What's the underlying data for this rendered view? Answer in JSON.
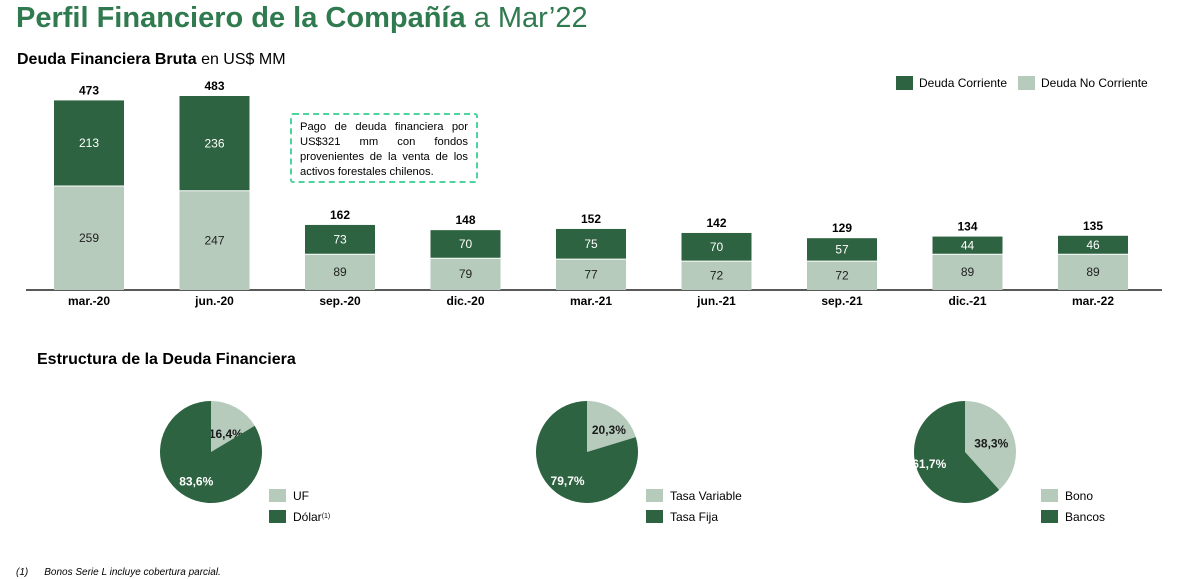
{
  "header": {
    "title_bold": "Perfil Financiero de la Compañía",
    "title_light": "a Mar’22"
  },
  "debt_chart": {
    "subtitle_bold": "Deuda Financiera Bruta",
    "subtitle_light": "en US$ MM",
    "callout": "Pago de deuda financiera por US$321 mm con fondos provenientes de la venta de los activos forestales chilenos."
  },
  "colors": {
    "dark_green": "#2d6340",
    "light_green": "#b6cbbc",
    "title_green": "#2f7a4e",
    "callout_border": "#4fd39c"
  },
  "structure": {
    "title": "Estructura de la Deuda Financiera"
  },
  "footnote": {
    "number": "(1)",
    "text": "Bonos Serie L incluye cobertura parcial."
  },
  "chart_data": [
    {
      "type": "bar",
      "stacked": true,
      "categories": [
        "mar.-20",
        "jun.-20",
        "sep.-20",
        "dic.-20",
        "mar.-21",
        "jun.-21",
        "sep.-21",
        "dic.-21",
        "mar.-22"
      ],
      "series": [
        {
          "name": "Deuda No Corriente",
          "color": "#b6cbbc",
          "values": [
            259,
            247,
            89,
            79,
            77,
            72,
            72,
            89,
            89
          ]
        },
        {
          "name": "Deuda Corriente",
          "color": "#2d6340",
          "values": [
            213,
            236,
            73,
            70,
            75,
            70,
            57,
            44,
            46
          ]
        }
      ],
      "totals": [
        473,
        483,
        162,
        148,
        152,
        142,
        129,
        134,
        135
      ],
      "legend_order": [
        "Deuda Corriente",
        "Deuda No Corriente"
      ],
      "legend_position": "top-right",
      "grid": false,
      "ylim": [
        0,
        530
      ]
    },
    {
      "type": "pie",
      "slices": [
        {
          "label": "UF",
          "value": 16.4,
          "value_label": "16,4%",
          "color": "#b6cbbc"
        },
        {
          "label": "Dólar",
          "label_sup": "(1)",
          "value": 83.6,
          "value_label": "83,6%",
          "color": "#2d6340"
        }
      ]
    },
    {
      "type": "pie",
      "slices": [
        {
          "label": "Tasa Variable",
          "value": 20.3,
          "value_label": "20,3%",
          "color": "#b6cbbc"
        },
        {
          "label": "Tasa Fija",
          "value": 79.7,
          "value_label": "79,7%",
          "color": "#2d6340"
        }
      ]
    },
    {
      "type": "pie",
      "slices": [
        {
          "label": "Bono",
          "value": 38.3,
          "value_label": "38,3%",
          "color": "#b6cbbc"
        },
        {
          "label": "Bancos",
          "value": 61.7,
          "value_label": "61,7%",
          "color": "#2d6340"
        }
      ]
    }
  ]
}
